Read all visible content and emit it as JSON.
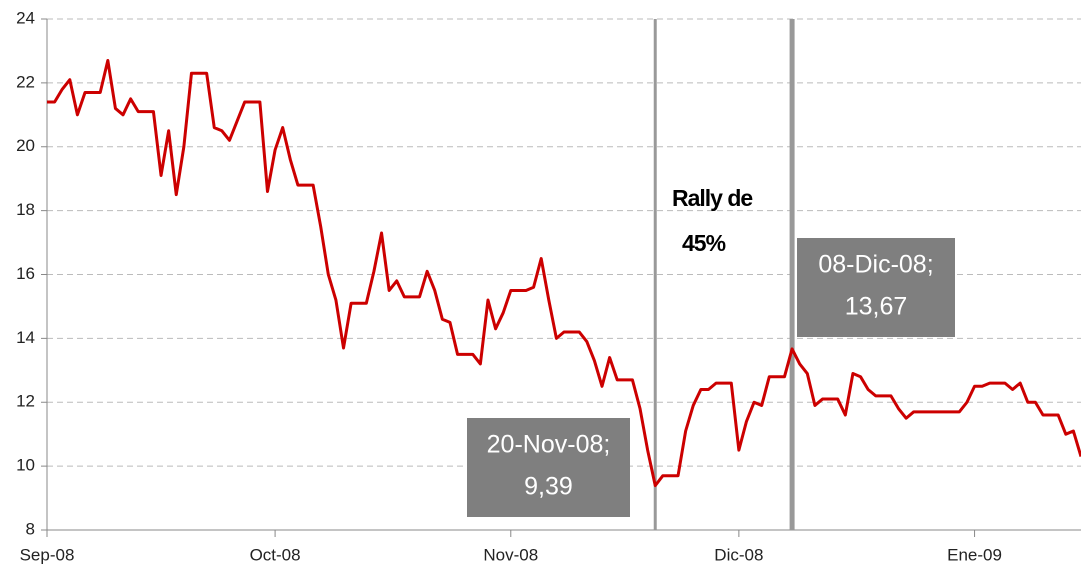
{
  "chart_data": {
    "type": "line",
    "categories": [
      "Sep-08",
      null,
      null,
      null,
      null,
      null,
      null,
      null,
      null,
      null,
      null,
      null,
      null,
      null,
      null,
      null,
      null,
      null,
      null,
      null,
      null,
      null,
      null,
      null,
      null,
      null,
      null,
      null,
      null,
      null,
      "Oct-08",
      null,
      null,
      null,
      null,
      null,
      null,
      null,
      null,
      null,
      null,
      null,
      null,
      null,
      null,
      null,
      null,
      null,
      null,
      null,
      null,
      null,
      null,
      null,
      null,
      null,
      null,
      null,
      null,
      null,
      null,
      "Nov-08",
      null,
      null,
      null,
      null,
      null,
      null,
      null,
      null,
      null,
      null,
      null,
      null,
      null,
      null,
      null,
      null,
      null,
      null,
      null,
      null,
      null,
      null,
      null,
      null,
      null,
      null,
      null,
      null,
      null,
      "Dic-08",
      null,
      null,
      null,
      null,
      null,
      null,
      null,
      null,
      null,
      null,
      null,
      null,
      null,
      null,
      null,
      null,
      null,
      null,
      null,
      null,
      null,
      null,
      null,
      null,
      null,
      null,
      null,
      null,
      null,
      null,
      "Ene-09",
      null,
      null,
      null,
      null,
      null,
      null,
      null,
      null,
      null,
      null,
      null,
      null,
      null,
      null
    ],
    "values": [
      21.4,
      21.4,
      21.8,
      22.1,
      21.0,
      21.7,
      21.7,
      21.7,
      22.7,
      21.2,
      21.0,
      21.5,
      21.1,
      21.1,
      21.1,
      19.1,
      20.5,
      18.5,
      20.0,
      22.3,
      22.3,
      22.3,
      20.6,
      20.5,
      20.2,
      20.8,
      21.4,
      21.4,
      21.4,
      18.6,
      19.9,
      20.6,
      19.6,
      18.8,
      18.8,
      18.8,
      17.5,
      16.0,
      15.2,
      13.7,
      15.1,
      15.1,
      15.1,
      16.1,
      17.3,
      15.5,
      15.8,
      15.3,
      15.3,
      15.3,
      16.1,
      15.5,
      14.6,
      14.5,
      13.5,
      13.5,
      13.5,
      13.2,
      15.2,
      14.3,
      14.8,
      15.5,
      15.5,
      15.5,
      15.6,
      16.5,
      15.2,
      14.0,
      14.2,
      14.2,
      14.2,
      13.9,
      13.3,
      12.5,
      13.4,
      12.7,
      12.7,
      12.7,
      11.8,
      10.5,
      9.39,
      9.7,
      9.7,
      9.7,
      11.1,
      11.9,
      12.4,
      12.4,
      12.6,
      12.6,
      12.6,
      10.5,
      11.4,
      12.0,
      11.9,
      12.8,
      12.8,
      12.8,
      13.67,
      13.2,
      12.9,
      11.9,
      12.1,
      12.1,
      12.1,
      11.6,
      12.9,
      12.8,
      12.4,
      12.2,
      12.2,
      12.2,
      11.8,
      11.5,
      11.7,
      11.7,
      11.7,
      11.7,
      11.7,
      11.7,
      11.7,
      12.0,
      12.5,
      12.5,
      12.6,
      12.6,
      12.6,
      12.4,
      12.6,
      12.0,
      12.0,
      11.6,
      11.6,
      11.6,
      11.0,
      11.1,
      10.3
    ],
    "color": "#cc0000",
    "ylim": [
      8,
      24
    ],
    "yticks": [
      8,
      10,
      12,
      14,
      16,
      18,
      20,
      22,
      24
    ],
    "grid": true,
    "annotations": [
      {
        "lines": [
          "20-Nov-08;",
          "9,39"
        ]
      },
      {
        "lines": [
          "08-Dic-08;",
          "13,67"
        ]
      },
      {
        "lines": [
          "Rally de",
          "45%"
        ]
      }
    ]
  }
}
